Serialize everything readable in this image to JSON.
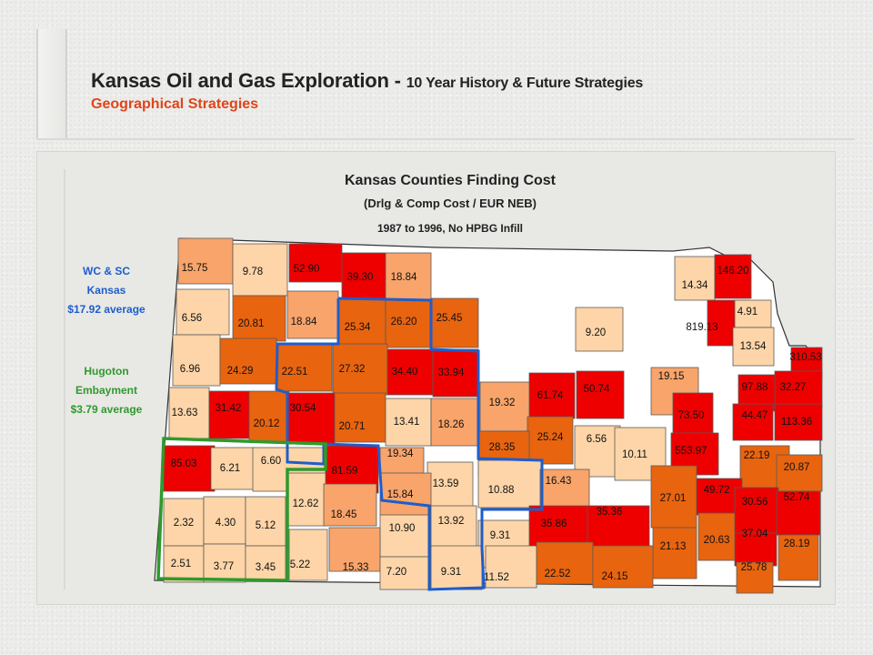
{
  "header": {
    "title_main": "Kansas Oil and Gas Exploration - ",
    "title_sub": "10 Year History & Future Strategies",
    "subtitle": "Geographical Strategies"
  },
  "map": {
    "title": "Kansas Counties Finding Cost",
    "subtitle": "(Drlg & Comp Cost / EUR NEB)",
    "date_range": "1987 to 1996, No HPBG Infill"
  },
  "regions": {
    "wc_sc": {
      "line1": "WC & SC",
      "line2": "Kansas",
      "line3": "$17.92 average",
      "color": "#1e5dcc"
    },
    "hugoton": {
      "line1": "Hugoton",
      "line2": "Embayment",
      "line3": "$3.79 average",
      "color": "#2f9a2c"
    }
  },
  "legend_colors": {
    "lt": "#fdd5a8",
    "med": "#f8a46a",
    "dk": "#e8640f",
    "red": "#ee0000",
    "none": "#ffffff"
  },
  "county_values": [
    "15.75",
    "9.78",
    "52.90",
    "39.30",
    "18.84",
    "14.34",
    "146.20",
    "6.56",
    "20.81",
    "18.84",
    "25.34",
    "26.20",
    "25.45",
    "9.20",
    "819.13",
    "4.91",
    "13.54",
    "6.96",
    "24.29",
    "22.51",
    "27.32",
    "34.40",
    "33.94",
    "310.53",
    "19.32",
    "61.74",
    "50.74",
    "19.15",
    "97.88",
    "32.27",
    "13.63",
    "31.42",
    "20.12",
    "30.54",
    "20.71",
    "13.41",
    "18.26",
    "73.50",
    "44.47",
    "113.36",
    "25.24",
    "6.56",
    "28.35",
    "10.11",
    "553.97",
    "85.03",
    "6.21",
    "6.60",
    "19.34",
    "81.59",
    "13.59",
    "10.88",
    "16.43",
    "22.19",
    "20.87",
    "27.01",
    "49.72",
    "30.56",
    "52.74",
    "2.32",
    "4.30",
    "5.12",
    "12.62",
    "18.45",
    "15.84",
    "35.86",
    "35.36",
    "10.90",
    "13.92",
    "9.31",
    "37.04",
    "28.19",
    "21.13",
    "20.63",
    "2.51",
    "3.77",
    "3.45",
    "5.22",
    "15.33",
    "7.20",
    "9.31",
    "11.52",
    "22.52",
    "24.15",
    "25.78"
  ]
}
